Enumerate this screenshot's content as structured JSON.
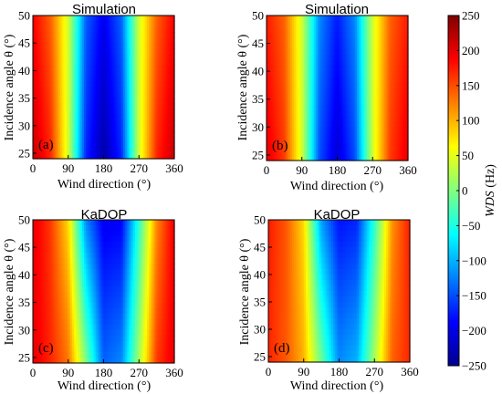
{
  "chart_data": [
    {
      "type": "heatmap",
      "panel_label": "(a)",
      "title": "Simulation",
      "xlabel": "Wind direction  (°)",
      "ylabel": "Incidence angle θ (°)",
      "xlim": [
        0,
        360
      ],
      "ylim": [
        24,
        50
      ],
      "xticks": [
        "0",
        "90",
        "180",
        "270",
        "360"
      ],
      "yticks": [
        "25",
        "30",
        "35",
        "40",
        "45",
        "50"
      ],
      "profile": {
        "wind_direction": [
          0,
          45,
          90,
          135,
          180,
          225,
          270,
          315,
          360
        ],
        "wds_top": [
          190,
          140,
          40,
          -140,
          -195,
          -140,
          40,
          140,
          190
        ],
        "wds_bottom": [
          215,
          170,
          40,
          -170,
          -230,
          -170,
          40,
          170,
          215
        ]
      }
    },
    {
      "type": "heatmap",
      "panel_label": "(b)",
      "title": "Simulation",
      "xlabel": "Wind direction  (°)",
      "ylabel": "Incidence angle θ (°)",
      "xlim": [
        0,
        360
      ],
      "ylim": [
        24,
        50
      ],
      "xticks": [
        "0",
        "90",
        "180",
        "270",
        "360"
      ],
      "yticks": [
        "25",
        "30",
        "35",
        "40",
        "45",
        "50"
      ],
      "profile": {
        "wind_direction": [
          0,
          45,
          90,
          135,
          180,
          225,
          270,
          315,
          360
        ],
        "wds_top": [
          175,
          140,
          40,
          -120,
          -175,
          -120,
          40,
          140,
          175
        ],
        "wds_bottom": [
          200,
          160,
          40,
          -150,
          -210,
          -150,
          40,
          160,
          200
        ]
      }
    },
    {
      "type": "heatmap",
      "panel_label": "(c)",
      "title": "KaDOP",
      "xlabel": "Wind direction  (°)",
      "ylabel": "Incidence angle θ (°)",
      "xlim": [
        0,
        360
      ],
      "ylim": [
        24,
        50
      ],
      "xticks": [
        "0",
        "90",
        "180",
        "270",
        "360"
      ],
      "yticks": [
        "25",
        "30",
        "35",
        "40",
        "45",
        "50"
      ],
      "profile": {
        "wind_direction": [
          0,
          45,
          90,
          135,
          180,
          225,
          270,
          315,
          360
        ],
        "wds_top": [
          200,
          160,
          80,
          -120,
          -195,
          -190,
          -40,
          120,
          195
        ],
        "wds_bottom": [
          200,
          170,
          130,
          0,
          -140,
          -120,
          20,
          160,
          200
        ]
      }
    },
    {
      "type": "heatmap",
      "panel_label": "(d)",
      "title": "KaDOP",
      "xlabel": "Wind direction  (°)",
      "ylabel": "Incidence angle θ (°)",
      "xlim": [
        0,
        360
      ],
      "ylim": [
        24,
        50
      ],
      "xticks": [
        "0",
        "90",
        "180",
        "270",
        "360"
      ],
      "yticks": [
        "25",
        "30",
        "35",
        "40",
        "45",
        "50"
      ],
      "profile": {
        "wind_direction": [
          0,
          45,
          90,
          135,
          180,
          225,
          270,
          315,
          360
        ],
        "wds_top": [
          175,
          145,
          80,
          -110,
          -180,
          -170,
          -40,
          115,
          175
        ],
        "wds_bottom": [
          170,
          145,
          100,
          -10,
          -120,
          -100,
          20,
          140,
          170
        ]
      }
    }
  ],
  "colorbar": {
    "label_italic": "WDS",
    "label_unit": "(Hz)",
    "range": [
      -250,
      250
    ],
    "ticks": [
      "250",
      "200",
      "150",
      "100",
      "50",
      "0",
      "−50",
      "−100",
      "−150",
      "−200",
      "−250"
    ]
  }
}
